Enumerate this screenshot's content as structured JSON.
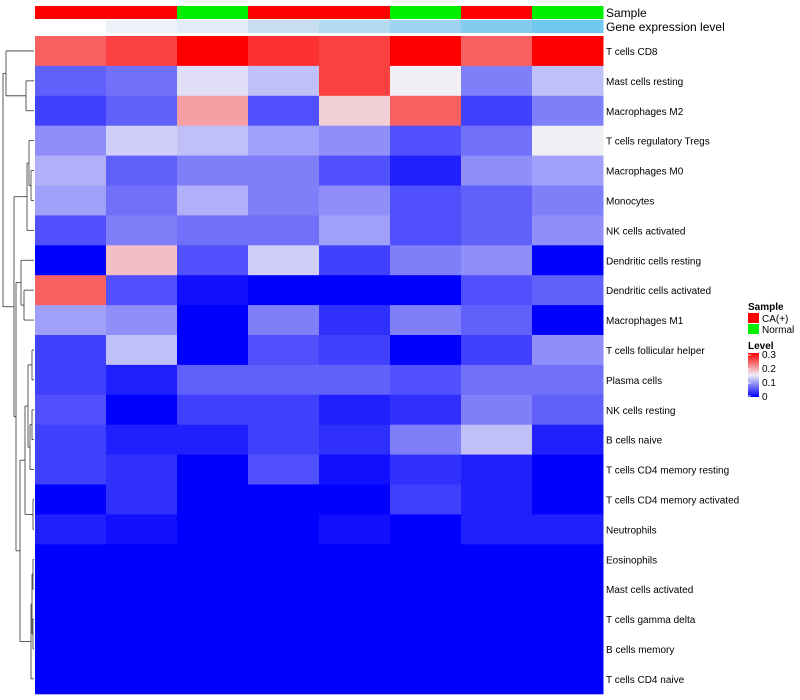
{
  "chart_data": {
    "type": "heatmap",
    "title": "",
    "annotation_labels": [
      "Sample",
      "Gene expression level"
    ],
    "sample_annotation": [
      "CA(+)",
      "CA(+)",
      "Normal",
      "CA(+)",
      "CA(+)",
      "Normal",
      "CA(+)",
      "Normal"
    ],
    "gene_expression_annotation": [
      "#ffffff",
      "#eef2f8",
      "#e2ecf6",
      "#c8dff2",
      "#b4daf2",
      "#9fd3f0",
      "#84ccef",
      "#70c8ee"
    ],
    "rows": [
      "T cells CD8",
      "Mast cells resting",
      "Macrophages M2",
      "T cells regulatory  Tregs",
      "Macrophages M0",
      "Monocytes",
      "NK cells activated",
      "Dendritic cells resting",
      "Dendritic cells activated",
      "Macrophages M1",
      "T cells follicular helper",
      "Plasma cells",
      "NK cells resting",
      "B cells naive",
      "T cells CD4 memory resting",
      "T cells CD4 memory activated",
      "Neutrophils",
      "Eosinophils",
      "Mast cells activated",
      "T cells gamma delta",
      "B cells memory",
      "T cells CD4 naive"
    ],
    "values": [
      [
        0.24,
        0.26,
        0.3,
        0.27,
        0.26,
        0.3,
        0.24,
        0.3
      ],
      [
        0.06,
        0.07,
        0.14,
        0.12,
        0.26,
        0.15,
        0.08,
        0.12
      ],
      [
        0.04,
        0.06,
        0.2,
        0.05,
        0.17,
        0.24,
        0.04,
        0.08
      ],
      [
        0.09,
        0.13,
        0.12,
        0.1,
        0.09,
        0.05,
        0.07,
        0.15
      ],
      [
        0.11,
        0.06,
        0.08,
        0.08,
        0.05,
        0.02,
        0.09,
        0.1
      ],
      [
        0.1,
        0.07,
        0.11,
        0.08,
        0.09,
        0.05,
        0.06,
        0.08
      ],
      [
        0.05,
        0.08,
        0.07,
        0.07,
        0.1,
        0.05,
        0.06,
        0.09
      ],
      [
        0.0,
        0.18,
        0.05,
        0.13,
        0.04,
        0.08,
        0.09,
        0.0
      ],
      [
        0.24,
        0.05,
        0.01,
        0.0,
        0.0,
        0.0,
        0.05,
        0.06
      ],
      [
        0.1,
        0.09,
        0.0,
        0.08,
        0.03,
        0.08,
        0.06,
        0.0
      ],
      [
        0.04,
        0.12,
        0.0,
        0.05,
        0.04,
        0.0,
        0.04,
        0.09
      ],
      [
        0.04,
        0.02,
        0.06,
        0.06,
        0.06,
        0.05,
        0.07,
        0.07
      ],
      [
        0.05,
        0.0,
        0.04,
        0.04,
        0.02,
        0.03,
        0.08,
        0.06
      ],
      [
        0.04,
        0.02,
        0.02,
        0.04,
        0.03,
        0.08,
        0.12,
        0.02
      ],
      [
        0.04,
        0.03,
        0.0,
        0.05,
        0.01,
        0.03,
        0.02,
        0.0
      ],
      [
        0.0,
        0.03,
        0.0,
        0.0,
        0.0,
        0.04,
        0.02,
        0.0
      ],
      [
        0.02,
        0.01,
        0.0,
        0.0,
        0.01,
        0.0,
        0.02,
        0.02
      ],
      [
        0.0,
        0.0,
        0.0,
        0.0,
        0.0,
        0.0,
        0.0,
        0.0
      ],
      [
        0.0,
        0.0,
        0.0,
        0.0,
        0.0,
        0.0,
        0.0,
        0.0
      ],
      [
        0.0,
        0.0,
        0.0,
        0.0,
        0.0,
        0.0,
        0.0,
        0.0
      ],
      [
        0.0,
        0.0,
        0.0,
        0.0,
        0.0,
        0.0,
        0.0,
        0.0
      ],
      [
        0.0,
        0.0,
        0.0,
        0.0,
        0.0,
        0.0,
        0.0,
        0.0
      ]
    ],
    "color_scale": {
      "min": 0,
      "mid": 0.15,
      "max": 0.3,
      "low": "#0000ff",
      "mid_color": "#f0eff6",
      "high": "#ff0000"
    },
    "legend": {
      "sample_title": "Sample",
      "sample_entries": [
        {
          "label": "CA(+)",
          "color": "#ff0000"
        },
        {
          "label": "Normal",
          "color": "#00ee00"
        }
      ],
      "level_title": "Level",
      "level_ticks": [
        "0.3",
        "0.2",
        "0.1",
        "0"
      ],
      "position": "right"
    }
  }
}
